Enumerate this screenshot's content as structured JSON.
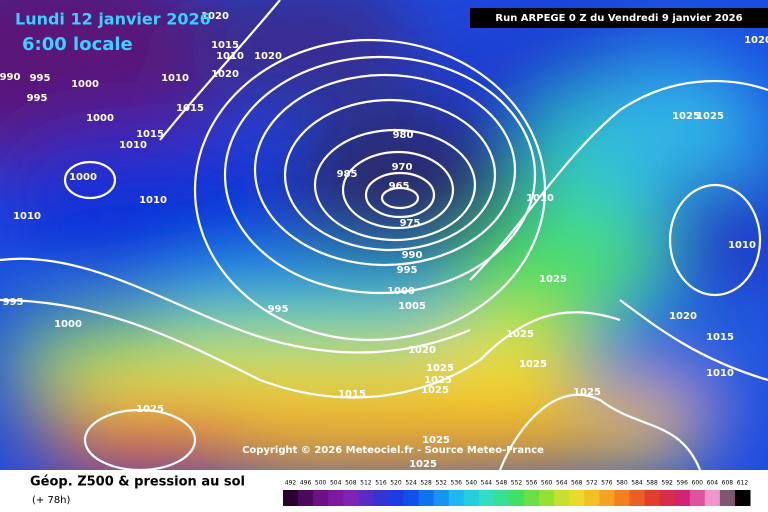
{
  "header": {
    "date": "Lundi 12 janvier 2026",
    "time": "6:00 locale",
    "run": "Run ARPEGE 0 Z du Vendredi 9 janvier 2026"
  },
  "copyright": "Copyright © 2026 Meteociel.fr - Source Meteo-France",
  "footer": {
    "title": "Géop. Z500 & pression au sol",
    "lead": "(+ 78h)"
  },
  "legend": {
    "ticks": [
      492,
      496,
      500,
      504,
      508,
      512,
      516,
      520,
      524,
      528,
      532,
      536,
      540,
      544,
      548,
      552,
      556,
      560,
      564,
      568,
      572,
      576,
      580,
      584,
      588,
      592,
      596,
      600,
      604,
      608,
      612
    ]
  },
  "isobar_labels": [
    "1000",
    "995",
    "990",
    "995",
    "1015",
    "1010",
    "1000",
    "1000",
    "1010",
    "1010",
    "1010",
    "1015",
    "1010",
    "1020",
    "1015",
    "1020",
    "1020",
    "980",
    "970",
    "965",
    "985",
    "975",
    "990",
    "995",
    "1000",
    "1005",
    "995",
    "1010",
    "1025",
    "1025",
    "1025",
    "1020",
    "1025",
    "1025",
    "1025",
    "1025",
    "1015",
    "1025",
    "1025",
    "1025",
    "1025",
    "1025",
    "1010",
    "1020",
    "1015",
    "1010",
    "1020",
    "1000",
    "995"
  ]
}
